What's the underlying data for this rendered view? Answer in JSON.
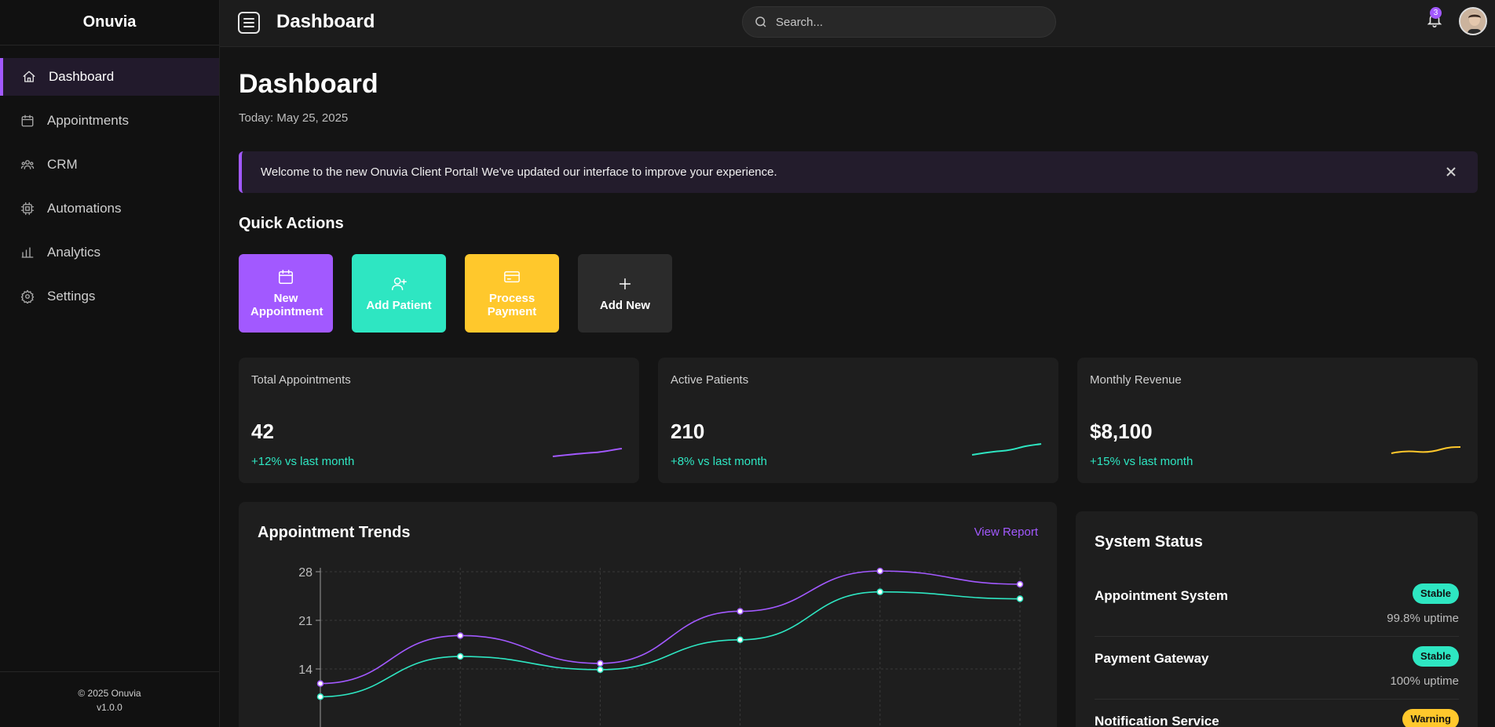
{
  "sidebar": {
    "brand": "Onuvia",
    "items": [
      {
        "label": "Dashboard",
        "icon": "home-icon",
        "active": true
      },
      {
        "label": "Appointments",
        "icon": "calendar-icon"
      },
      {
        "label": "CRM",
        "icon": "users-icon"
      },
      {
        "label": "Automations",
        "icon": "cpu-icon"
      },
      {
        "label": "Analytics",
        "icon": "bar-chart-icon"
      },
      {
        "label": "Settings",
        "icon": "gear-icon"
      }
    ],
    "footer": {
      "copyright": "© 2025 Onuvia",
      "version": "v1.0.0"
    }
  },
  "header": {
    "title": "Dashboard",
    "search_placeholder": "Search...",
    "notification_count": "3"
  },
  "main": {
    "title": "Dashboard",
    "date": "Today: May 25, 2025",
    "banner": "Welcome to the new Onuvia Client Portal! We've updated our interface to improve your experience.",
    "quick_actions_title": "Quick Actions",
    "quick_actions": [
      {
        "label": "New Appointment",
        "icon": "calendar-icon",
        "color": "#a259ff"
      },
      {
        "label": "Add Patient",
        "icon": "user-plus-icon",
        "color": "#2ee6c2"
      },
      {
        "label": "Process Payment",
        "icon": "credit-card-icon",
        "color": "#ffc82c"
      },
      {
        "label": "Add New",
        "icon": "plus-icon",
        "color": "#2b2b2b"
      }
    ],
    "stats": [
      {
        "label": "Total Appointments",
        "value": "42",
        "change": "+12% vs last month",
        "color": "#a259ff"
      },
      {
        "label": "Active Patients",
        "value": "210",
        "change": "+8% vs last month",
        "color": "#2ee6c2"
      },
      {
        "label": "Monthly Revenue",
        "value": "$8,100",
        "change": "+15% vs last month",
        "color": "#ffc82c"
      }
    ],
    "trends": {
      "title": "Appointment Trends",
      "link": "View Report"
    },
    "system_status": {
      "title": "System Status",
      "items": [
        {
          "name": "Appointment System",
          "status": "Stable",
          "uptime": "99.8% uptime"
        },
        {
          "name": "Payment Gateway",
          "status": "Stable",
          "uptime": "100% uptime"
        },
        {
          "name": "Notification Service",
          "status": "Warning",
          "uptime": ""
        }
      ]
    }
  },
  "chart_data": {
    "type": "line",
    "title": "Appointment Trends",
    "xlabel": "",
    "ylabel": "",
    "yticks": [
      14,
      21,
      28
    ],
    "ylim": [
      7,
      28
    ],
    "grid": true,
    "series": [
      {
        "color": "#a259ff",
        "values": [
          11.9,
          18.8,
          14.8,
          22.3,
          28.1,
          26.2
        ]
      },
      {
        "color": "#2ee6c2",
        "values": [
          10.0,
          15.8,
          13.9,
          18.2,
          25.1,
          24.1
        ]
      }
    ]
  }
}
